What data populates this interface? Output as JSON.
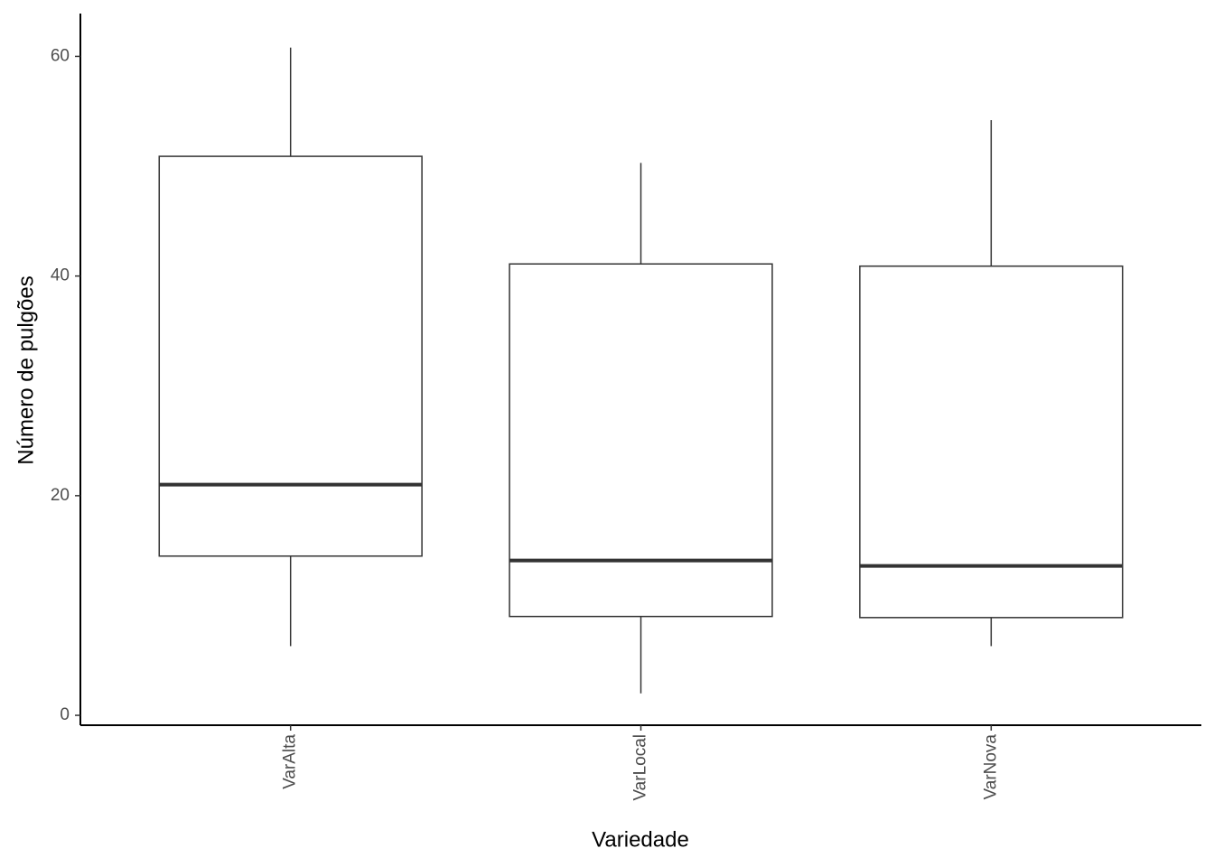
{
  "chart_data": {
    "type": "boxplot",
    "x_label": "Variedade",
    "y_label": "Número de pulgões",
    "categories": [
      "VarAlta",
      "VarLocal",
      "VarNova"
    ],
    "boxes": [
      {
        "min": 6.3,
        "q1": 14.5,
        "median": 21,
        "q3": 50.9,
        "max": 60.8
      },
      {
        "min": 2,
        "q1": 9,
        "median": 14.1,
        "q3": 41.1,
        "max": 50.3
      },
      {
        "min": 6.3,
        "q1": 8.9,
        "median": 13.6,
        "q3": 40.9,
        "max": 54.2
      }
    ],
    "color": "#333333",
    "fill": "#ffffff",
    "ylim": [
      -0.9,
      63.9
    ],
    "yticks": [
      0,
      20,
      40,
      60
    ],
    "grid": false
  }
}
